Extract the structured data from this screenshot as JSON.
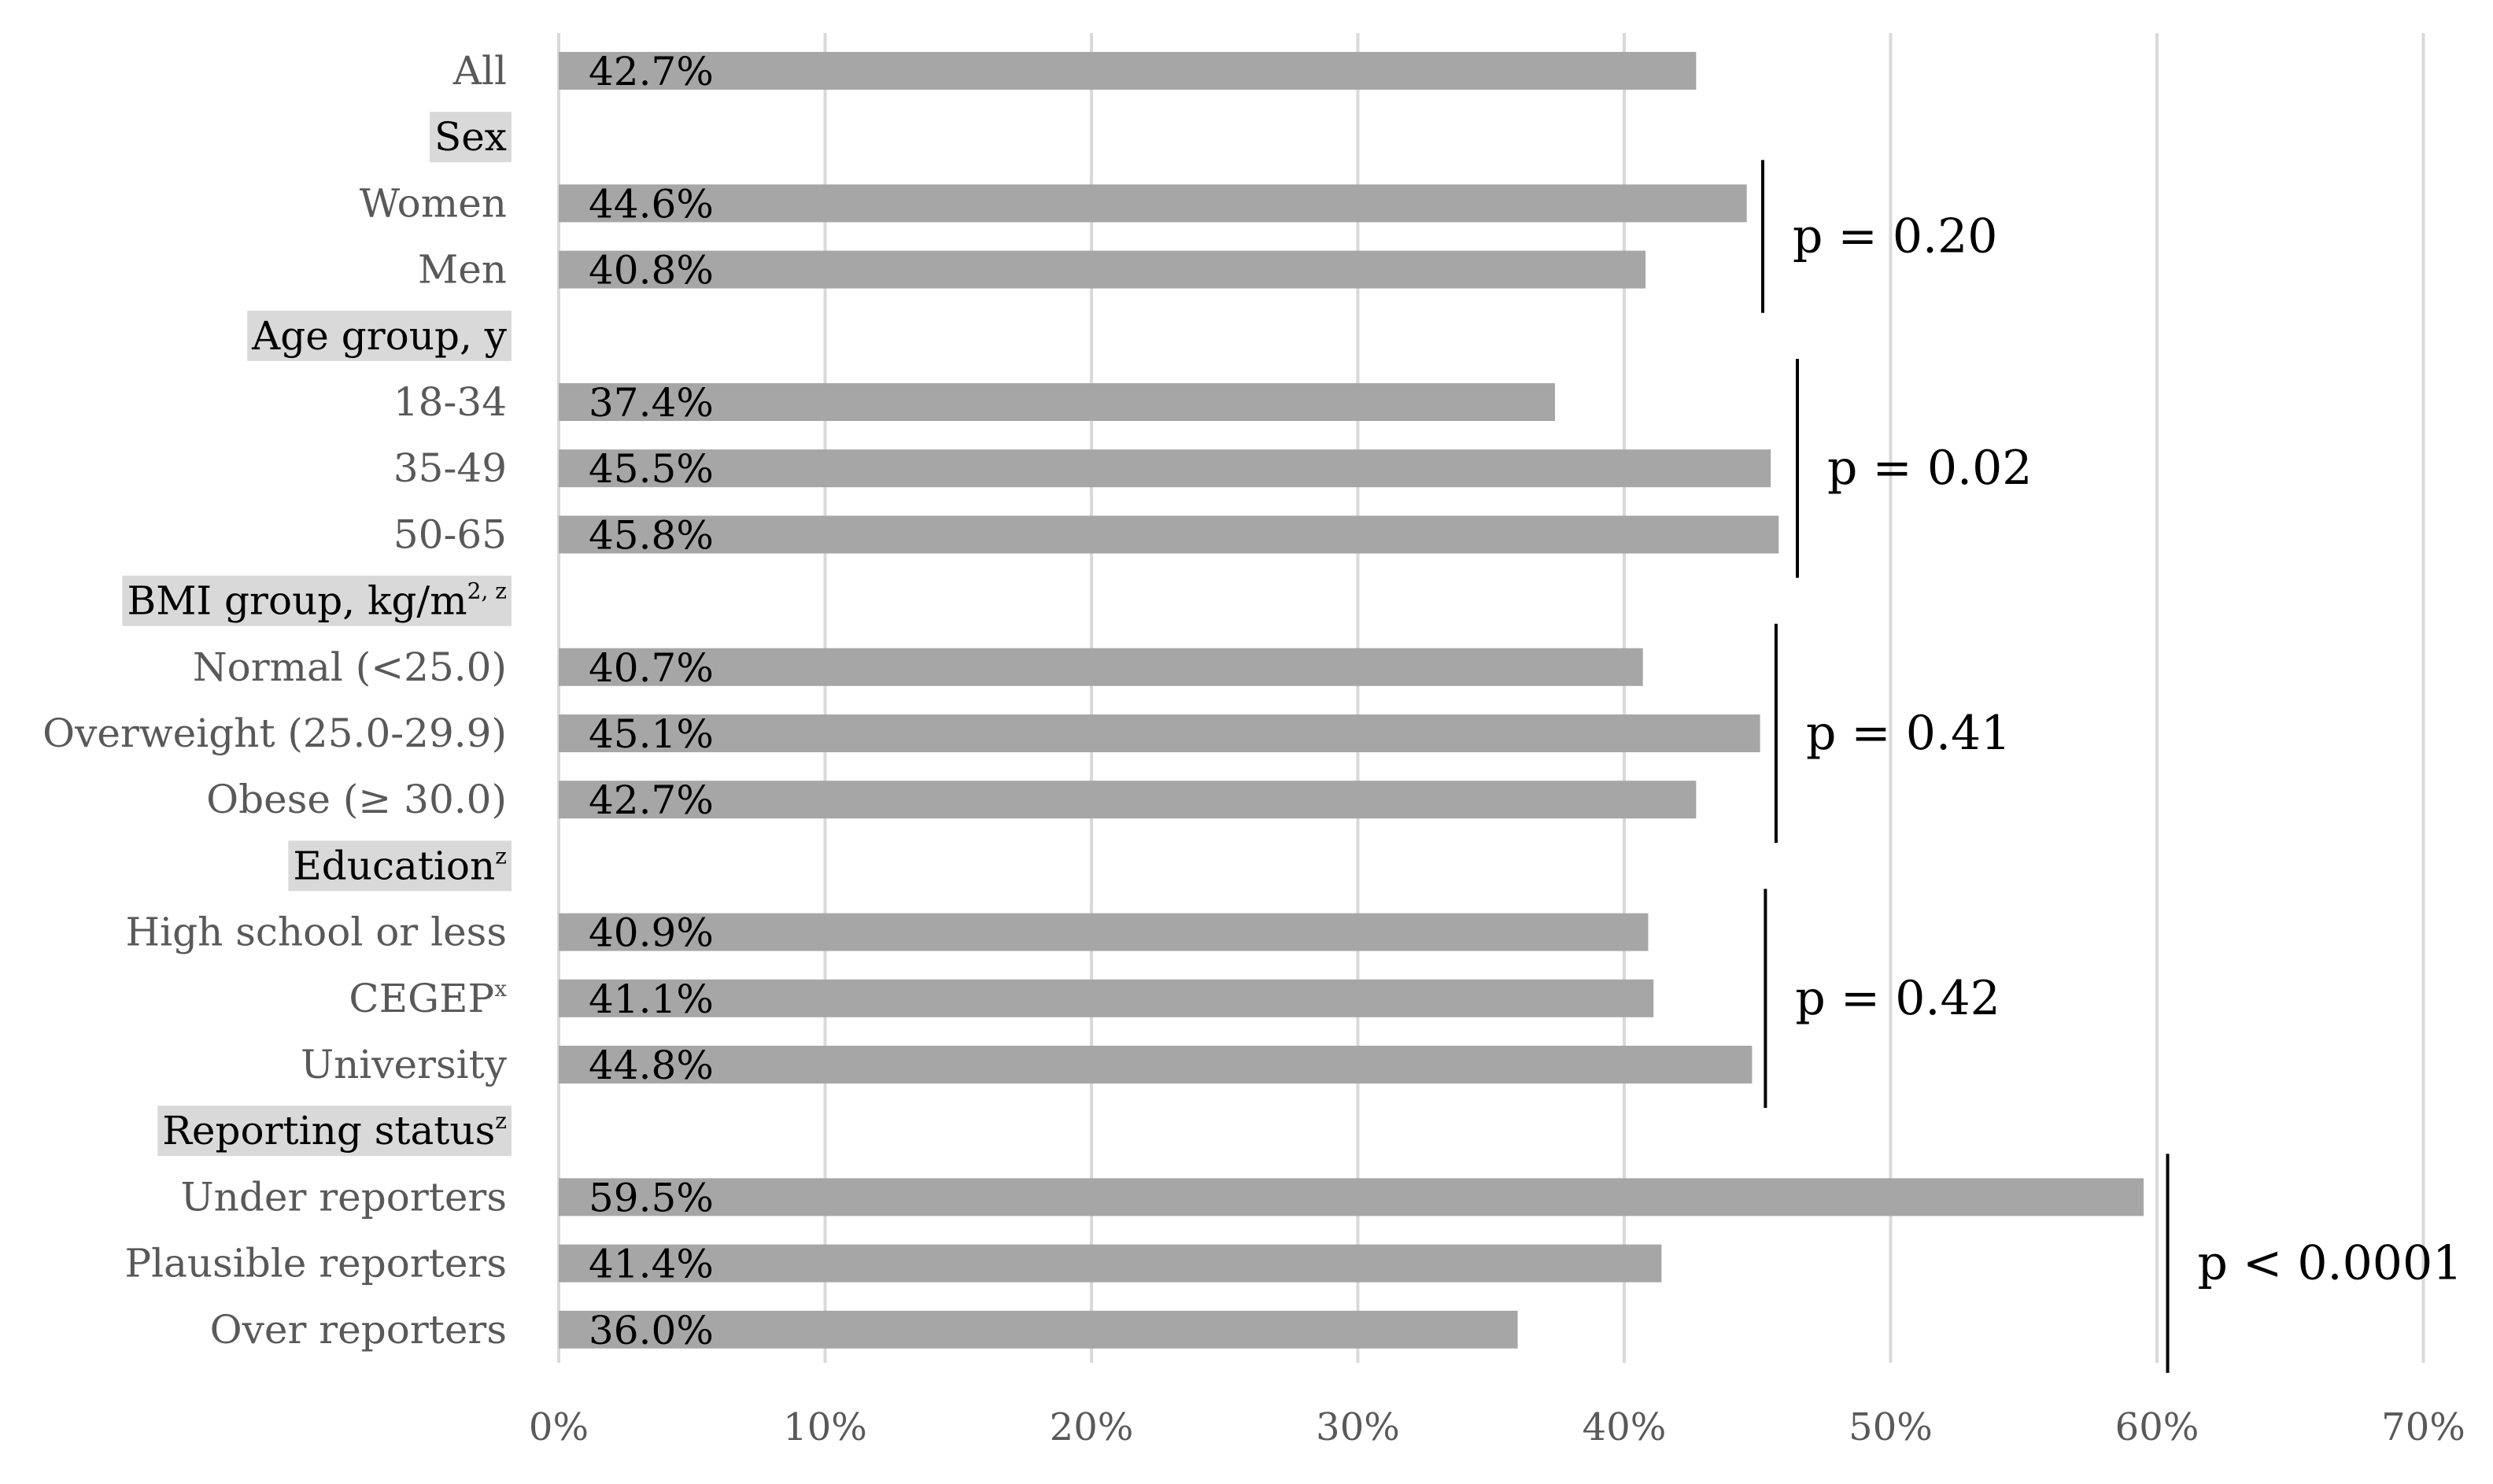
{
  "chart_data": {
    "type": "bar",
    "orientation": "horizontal",
    "x_ticks": [
      "0%",
      "10%",
      "20%",
      "30%",
      "40%",
      "50%",
      "60%",
      "70%"
    ],
    "xlim": [
      0,
      70
    ],
    "grid": "vertical",
    "legend": "none",
    "colors": {
      "bar": "#a6a6a6",
      "grid": "#d9d9d9",
      "group_bg": "#d9d9d9",
      "category_text": "#595959"
    },
    "rows": [
      {
        "kind": "category",
        "label": "All",
        "value": 42.7,
        "value_label": "42.7%"
      },
      {
        "kind": "group",
        "label": "Sex",
        "sup": ""
      },
      {
        "kind": "category",
        "label": "Women",
        "value": 44.6,
        "value_label": "44.6%"
      },
      {
        "kind": "category",
        "label": "Men",
        "value": 40.8,
        "value_label": "40.8%"
      },
      {
        "kind": "group",
        "label": "Age group, y",
        "sup": ""
      },
      {
        "kind": "category",
        "label": "18-34",
        "value": 37.4,
        "value_label": "37.4%"
      },
      {
        "kind": "category",
        "label": "35-49",
        "value": 45.5,
        "value_label": "45.5%"
      },
      {
        "kind": "category",
        "label": "50-65",
        "value": 45.8,
        "value_label": "45.8%"
      },
      {
        "kind": "group",
        "label": "BMI group, kg/m",
        "sup": "2, z"
      },
      {
        "kind": "category",
        "label": "Normal (<25.0)",
        "value": 40.7,
        "value_label": "40.7%"
      },
      {
        "kind": "category",
        "label": "Overweight (25.0-29.9)",
        "value": 45.1,
        "value_label": "45.1%"
      },
      {
        "kind": "category",
        "label": "Obese (≥ 30.0)",
        "value": 42.7,
        "value_label": "42.7%"
      },
      {
        "kind": "group",
        "label": "Education",
        "sup": "z"
      },
      {
        "kind": "category",
        "label": "High school or less",
        "value": 40.9,
        "value_label": "40.9%"
      },
      {
        "kind": "category",
        "label": "CEGEP",
        "sup": "x",
        "value": 41.1,
        "value_label": "41.1%"
      },
      {
        "kind": "category",
        "label": "University",
        "value": 44.8,
        "value_label": "44.8%"
      },
      {
        "kind": "group",
        "label": "Reporting status",
        "sup": "z"
      },
      {
        "kind": "category",
        "label": "Under reporters",
        "value": 59.5,
        "value_label": "59.5%"
      },
      {
        "kind": "category",
        "label": "Plausible reporters",
        "value": 41.4,
        "value_label": "41.4%"
      },
      {
        "kind": "category",
        "label": "Over reporters",
        "value": 36.0,
        "value_label": "36.0%"
      }
    ],
    "annotations": [
      {
        "text": "p = 0.20",
        "rows": [
          2,
          3
        ],
        "x": 45.2
      },
      {
        "text": "p = 0.02",
        "rows": [
          5,
          7
        ],
        "x": 46.5
      },
      {
        "text": "p = 0.41",
        "rows": [
          9,
          11
        ],
        "x": 45.7
      },
      {
        "text": "p = 0.42",
        "rows": [
          13,
          15
        ],
        "x": 45.3
      },
      {
        "text": "p < 0.0001",
        "rows": [
          17,
          19
        ],
        "x": 60.4
      }
    ]
  }
}
